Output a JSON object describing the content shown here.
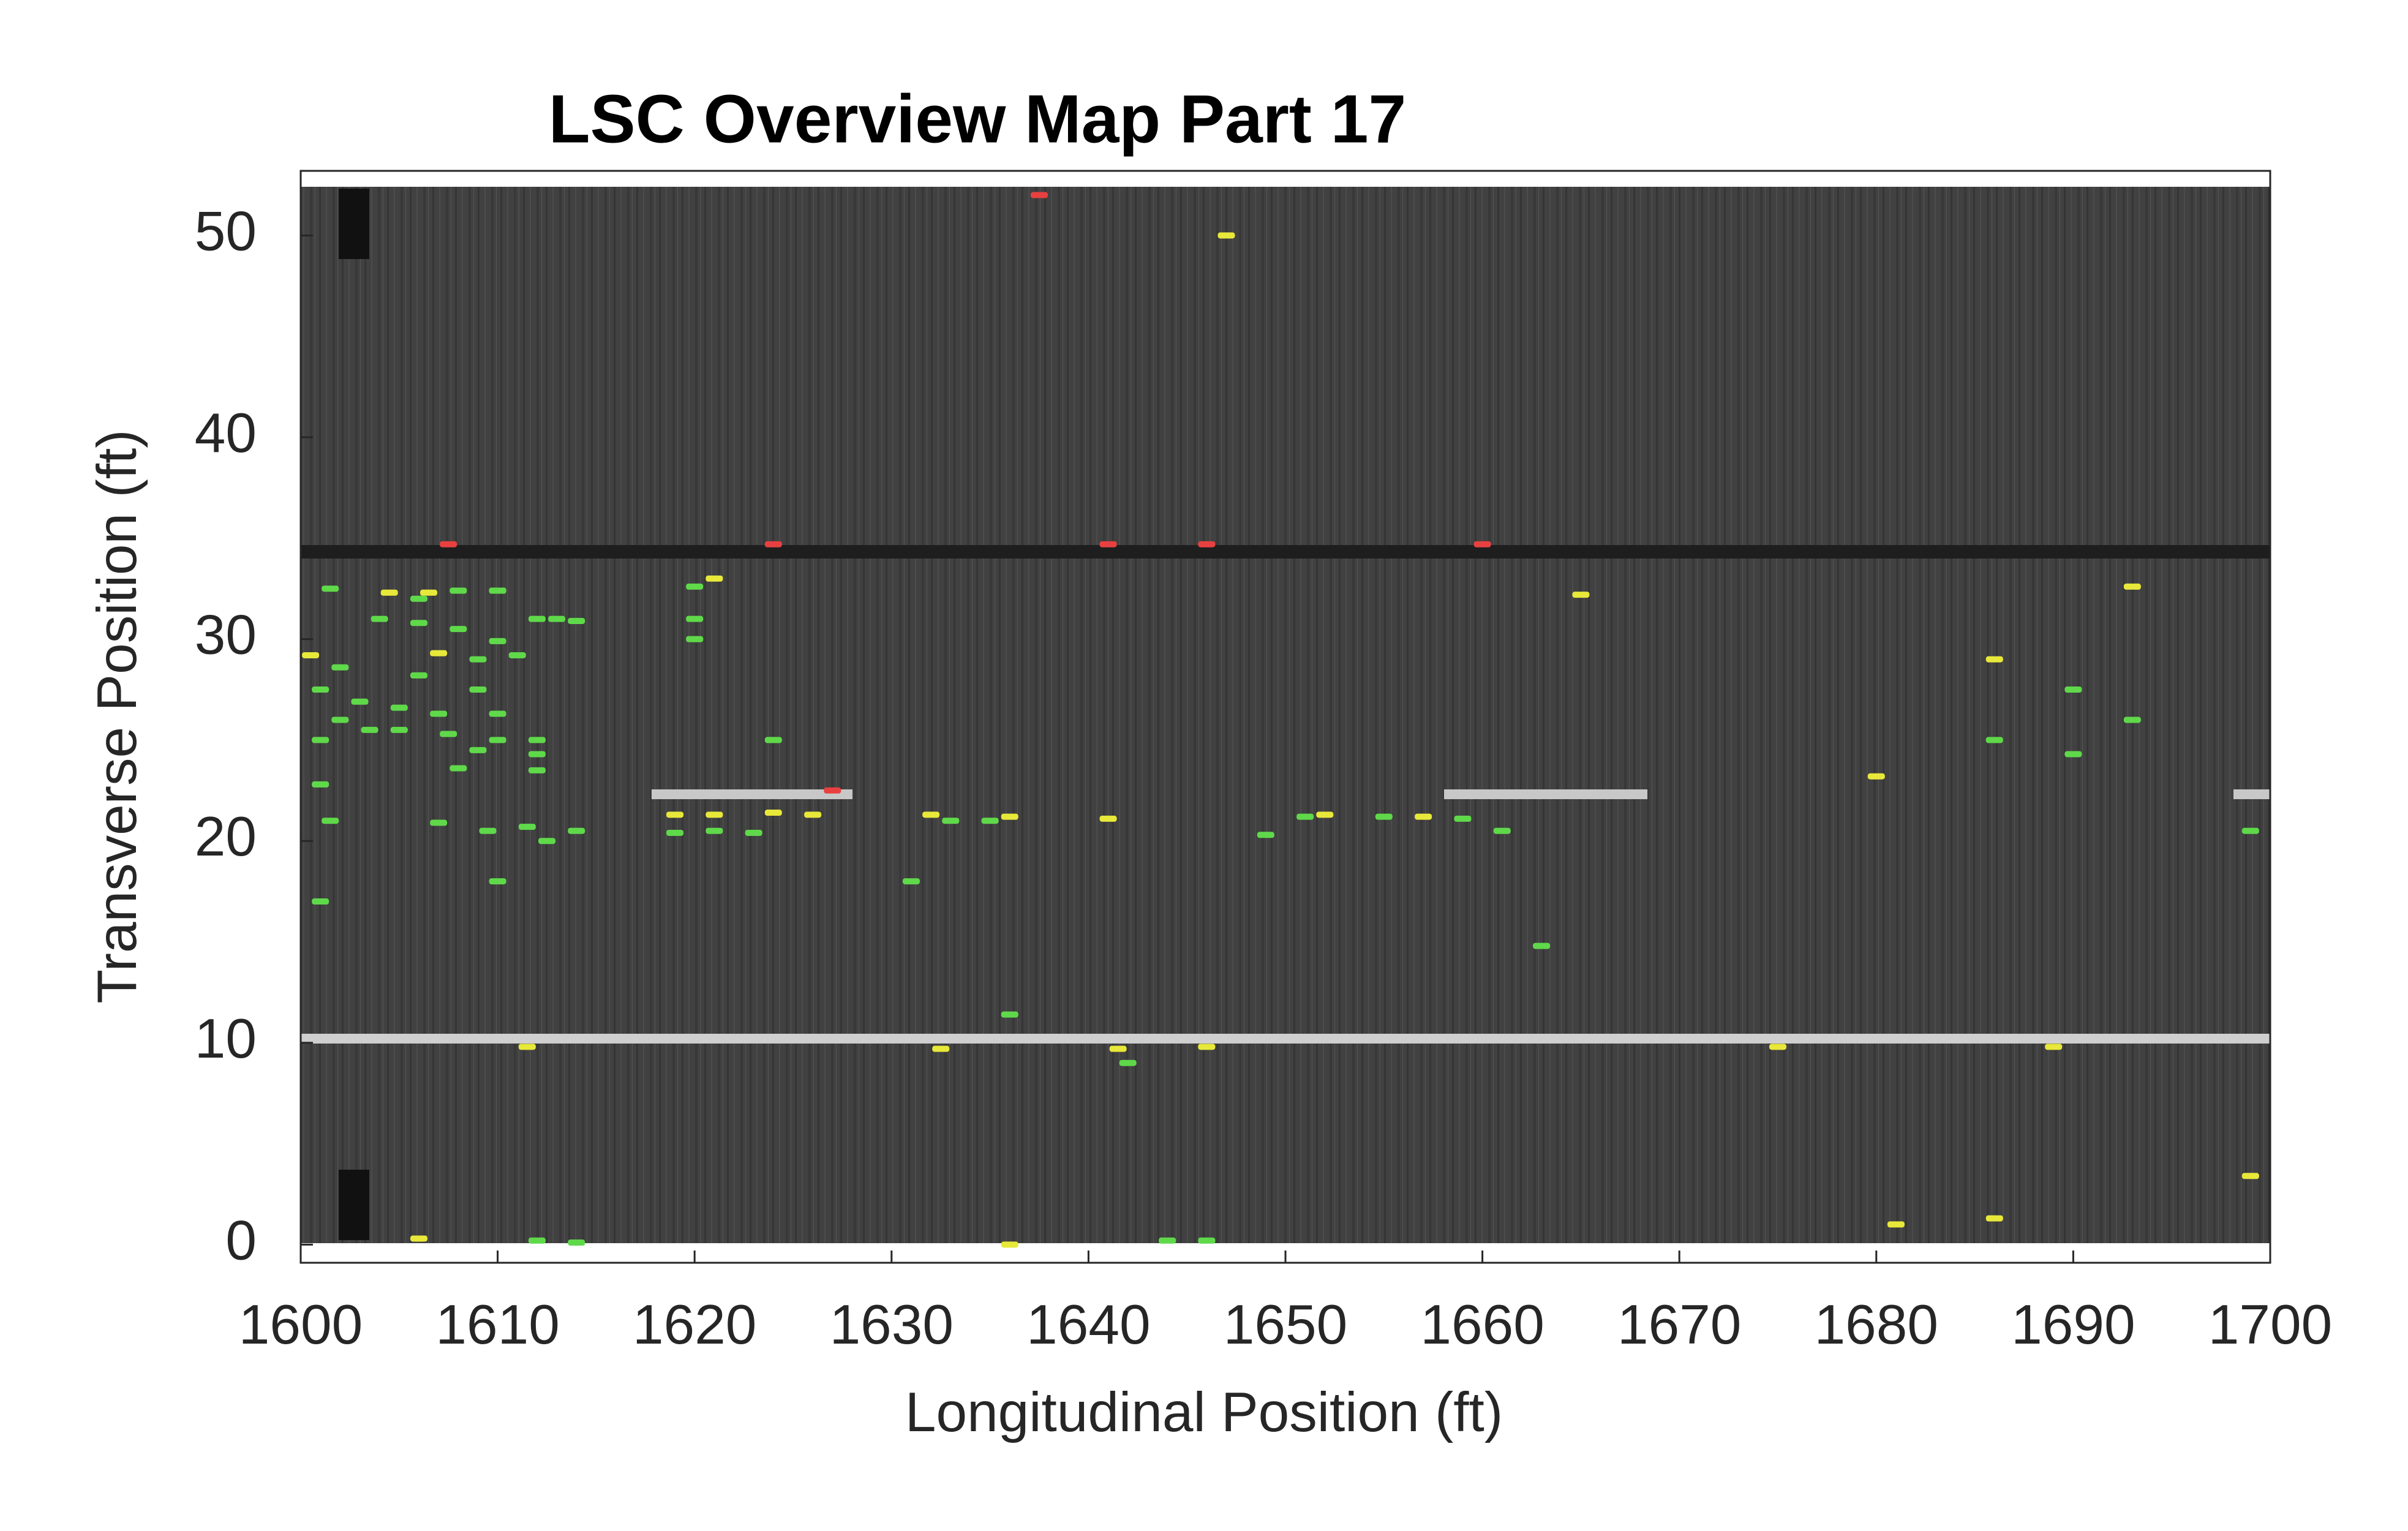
{
  "chart_data": {
    "type": "scatter",
    "title": "LSC Overview Map Part 17",
    "x_label": "Longitudinal Position (ft)",
    "y_label": "Transverse Position (ft)",
    "xlim": [
      1600,
      1700
    ],
    "ylim": [
      -0.9,
      53.2
    ],
    "xticks": [
      1600,
      1610,
      1620,
      1630,
      1640,
      1650,
      1660,
      1670,
      1680,
      1690,
      1700
    ],
    "yticks": [
      0,
      10,
      20,
      30,
      40,
      50
    ],
    "series": [
      {
        "color": "#e84040",
        "x": [
          1637.5,
          1607.5,
          1624,
          1641,
          1646,
          1660,
          1627
        ],
        "y": [
          52,
          34.7,
          34.7,
          34.7,
          34.7,
          34.7,
          22.5
        ]
      },
      {
        "color": "#e8e83a",
        "x": [
          1647,
          1604.5,
          1606.5,
          1610,
          1621,
          1600.5,
          1607,
          1619,
          1621,
          1624,
          1626,
          1632,
          1636,
          1641,
          1652,
          1657,
          1665,
          1686,
          1680,
          1693,
          1611.5,
          1632.5,
          1641.5,
          1646,
          1675,
          1689,
          1699,
          1681,
          1686,
          1606,
          1636
        ],
        "y": [
          50,
          32.3,
          32.3,
          32.4,
          33,
          29.2,
          29.3,
          21.3,
          21.3,
          21.4,
          21.3,
          21.3,
          21.2,
          21.1,
          21.3,
          21.2,
          32.2,
          29,
          23.2,
          32.6,
          9.8,
          9.7,
          9.7,
          9.8,
          9.8,
          9.8,
          3.4,
          1,
          1.3,
          0.3,
          0
        ]
      },
      {
        "color": "#5fd94a",
        "x": [
          1601.5,
          1604,
          1606,
          1608,
          1610,
          1612,
          1613,
          1614,
          1606,
          1608,
          1610,
          1609,
          1611,
          1602,
          1601,
          1606,
          1609,
          1603,
          1605,
          1607,
          1610,
          1602,
          1603.5,
          1605,
          1607.5,
          1610,
          1612,
          1601,
          1609,
          1612,
          1608,
          1612,
          1601,
          1624,
          1620,
          1620,
          1620,
          1601.5,
          1607,
          1609.5,
          1611.5,
          1612.5,
          1614,
          1619,
          1621,
          1623,
          1610,
          1601,
          1631,
          1633,
          1635,
          1649,
          1651,
          1655,
          1659,
          1661,
          1663,
          1636,
          1642,
          1686,
          1690,
          1690,
          1693,
          1699,
          1612,
          1614,
          1646,
          1644
        ],
        "y": [
          32.5,
          31,
          32,
          32.4,
          32.4,
          31,
          31,
          30.9,
          30.8,
          30.5,
          29.9,
          29,
          29.2,
          28.6,
          27.5,
          28.2,
          27.5,
          26.9,
          26.6,
          26.3,
          26.3,
          26,
          25.5,
          25.5,
          25.3,
          25,
          25,
          25,
          24.5,
          24.3,
          23.6,
          23.5,
          22.8,
          25,
          31,
          30,
          32.6,
          21,
          20.9,
          20.5,
          20.7,
          20,
          20.5,
          20.4,
          20.5,
          20.4,
          18,
          17,
          18,
          21,
          21,
          20.3,
          21.2,
          21.2,
          21.1,
          20.5,
          14.8,
          11.4,
          9,
          25,
          27.5,
          24.3,
          26,
          20.5,
          0.2,
          0.1,
          0.2,
          0.2
        ]
      }
    ]
  }
}
